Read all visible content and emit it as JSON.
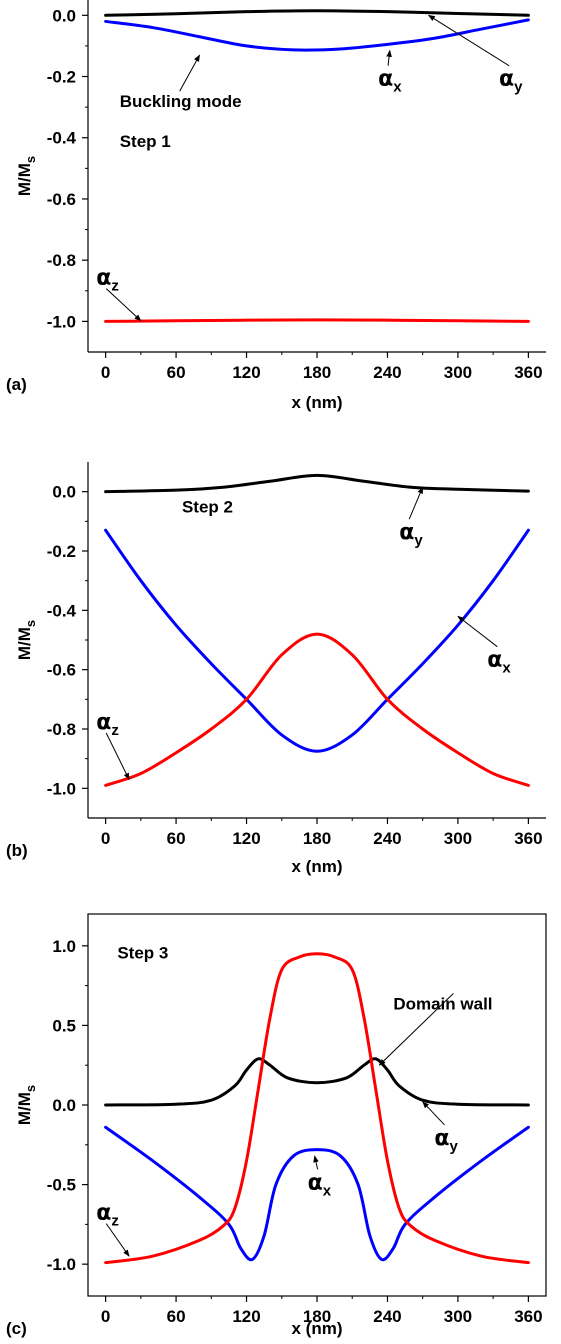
{
  "chart_data": [
    {
      "type": "line",
      "panel_label": "(a)",
      "xlabel": "x  (nm)",
      "ylabel": {
        "main": "M/M",
        "sub": "s"
      },
      "xlim": [
        -15,
        375
      ],
      "ylim": [
        -1.1,
        0.05
      ],
      "xticks": [
        0,
        60,
        120,
        180,
        240,
        300,
        360
      ],
      "yticks": [
        0.0,
        -0.2,
        -0.4,
        -0.6,
        -0.8,
        -1.0
      ],
      "ytick_labels": [
        "0.0",
        "-0.2",
        "-0.4",
        "-0.6",
        "-0.8",
        "-1.0"
      ],
      "frame": "left-bottom",
      "series": [
        {
          "name": "αy",
          "color": "#000000",
          "x": [
            0,
            60,
            120,
            180,
            240,
            300,
            360
          ],
          "y": [
            0.0,
            0.005,
            0.012,
            0.015,
            0.012,
            0.006,
            0.0
          ]
        },
        {
          "name": "αx",
          "color": "#0000ff",
          "x": [
            0,
            40,
            80,
            120,
            160,
            200,
            240,
            280,
            320,
            360
          ],
          "y": [
            -0.02,
            -0.04,
            -0.07,
            -0.1,
            -0.113,
            -0.11,
            -0.095,
            -0.075,
            -0.045,
            -0.015
          ]
        },
        {
          "name": "αz",
          "color": "#ff0000",
          "x": [
            0,
            60,
            120,
            180,
            240,
            300,
            360
          ],
          "y": [
            -1.0,
            -0.998,
            -0.996,
            -0.995,
            -0.996,
            -0.998,
            -1.0
          ]
        }
      ],
      "annotations": [
        {
          "text": "Buckling mode",
          "x": 12,
          "y": -0.3,
          "ax": 80,
          "ay": -0.13
        },
        {
          "text": "Step 1",
          "x": 12,
          "y": -0.43
        },
        {
          "greek": "α",
          "sub": "x",
          "x": 232,
          "y": -0.23,
          "ax": 242,
          "ay": -0.115
        },
        {
          "greek": "α",
          "sub": "y",
          "x": 335,
          "y": -0.23,
          "ax": 275,
          "ay": 0.0
        },
        {
          "greek": "α",
          "sub": "z",
          "x": -8,
          "y": -0.88,
          "ax": 30,
          "ay": -0.998
        }
      ]
    },
    {
      "type": "line",
      "panel_label": "(b)",
      "xlabel": "x  (nm)",
      "ylabel": {
        "main": "M/M",
        "sub": "s"
      },
      "xlim": [
        -15,
        375
      ],
      "ylim": [
        -1.1,
        0.1
      ],
      "xticks": [
        0,
        60,
        120,
        180,
        240,
        300,
        360
      ],
      "yticks": [
        0.0,
        -0.2,
        -0.4,
        -0.6,
        -0.8,
        -1.0
      ],
      "ytick_labels": [
        "0.0",
        "-0.2",
        "-0.4",
        "-0.6",
        "-0.8",
        "-1.0"
      ],
      "frame": "left-bottom",
      "series": [
        {
          "name": "αy",
          "color": "#000000",
          "x": [
            0,
            60,
            100,
            140,
            180,
            220,
            260,
            300,
            360
          ],
          "y": [
            0.0,
            0.005,
            0.015,
            0.035,
            0.055,
            0.035,
            0.015,
            0.008,
            0.002
          ]
        },
        {
          "name": "αx",
          "color": "#0000ff",
          "x": [
            0,
            30,
            60,
            90,
            120,
            150,
            180,
            210,
            240,
            270,
            300,
            330,
            360
          ],
          "y": [
            -0.13,
            -0.3,
            -0.45,
            -0.58,
            -0.7,
            -0.82,
            -0.875,
            -0.82,
            -0.7,
            -0.58,
            -0.45,
            -0.3,
            -0.13
          ]
        },
        {
          "name": "αz",
          "color": "#ff0000",
          "x": [
            0,
            30,
            60,
            90,
            120,
            150,
            180,
            210,
            240,
            270,
            300,
            330,
            360
          ],
          "y": [
            -0.99,
            -0.95,
            -0.88,
            -0.8,
            -0.7,
            -0.55,
            -0.48,
            -0.55,
            -0.7,
            -0.8,
            -0.88,
            -0.95,
            -0.99
          ]
        }
      ],
      "annotations": [
        {
          "text": "Step 2",
          "x": 65,
          "y": -0.07
        },
        {
          "greek": "α",
          "sub": "y",
          "x": 250,
          "y": -0.16,
          "ax": 270,
          "ay": 0.015
        },
        {
          "greek": "α",
          "sub": "x",
          "x": 325,
          "y": -0.59,
          "ax": 300,
          "ay": -0.42
        },
        {
          "greek": "α",
          "sub": "z",
          "x": -8,
          "y": -0.8,
          "ax": 20,
          "ay": -0.97
        }
      ]
    },
    {
      "type": "line",
      "panel_label": "(c)",
      "xlabel": "x  (nm)",
      "ylabel": {
        "main": "M/M",
        "sub": "s"
      },
      "xlim": [
        -15,
        375
      ],
      "ylim": [
        -1.2,
        1.2
      ],
      "xticks": [
        0,
        60,
        120,
        180,
        240,
        300,
        360
      ],
      "yticks": [
        1.0,
        0.5,
        0.0,
        -0.5,
        -1.0
      ],
      "ytick_labels": [
        "1.0",
        "0.5",
        "0.0",
        "-0.5",
        "-1.0"
      ],
      "frame": "box",
      "series": [
        {
          "name": "αy",
          "color": "#000000",
          "x": [
            0,
            60,
            90,
            110,
            120,
            130,
            140,
            155,
            180,
            205,
            220,
            230,
            240,
            250,
            270,
            300,
            360
          ],
          "y": [
            0.0,
            0.005,
            0.03,
            0.12,
            0.22,
            0.29,
            0.25,
            0.17,
            0.14,
            0.17,
            0.25,
            0.29,
            0.22,
            0.12,
            0.03,
            0.005,
            0.0
          ]
        },
        {
          "name": "αx",
          "color": "#0000ff",
          "x": [
            0,
            40,
            80,
            105,
            115,
            125,
            135,
            145,
            160,
            180,
            200,
            215,
            225,
            235,
            245,
            255,
            280,
            320,
            360
          ],
          "y": [
            -0.14,
            -0.35,
            -0.58,
            -0.75,
            -0.9,
            -0.97,
            -0.82,
            -0.5,
            -0.32,
            -0.28,
            -0.32,
            -0.5,
            -0.82,
            -0.97,
            -0.9,
            -0.75,
            -0.58,
            -0.35,
            -0.14
          ]
        },
        {
          "name": "αz",
          "color": "#ff0000",
          "x": [
            0,
            40,
            80,
            100,
            110,
            120,
            130,
            140,
            150,
            165,
            180,
            195,
            210,
            220,
            230,
            240,
            250,
            260,
            280,
            320,
            360
          ],
          "y": [
            -0.99,
            -0.95,
            -0.85,
            -0.76,
            -0.65,
            -0.35,
            0.1,
            0.55,
            0.85,
            0.93,
            0.95,
            0.93,
            0.85,
            0.55,
            0.1,
            -0.35,
            -0.65,
            -0.76,
            -0.85,
            -0.95,
            -0.99
          ]
        }
      ],
      "annotations": [
        {
          "text": "Step 3",
          "x": 10,
          "y": 0.92
        },
        {
          "text": "Domain wall",
          "x": 245,
          "y": 0.6,
          "ax": 233,
          "ay": 0.25
        },
        {
          "greek": "α",
          "sub": "x",
          "x": 172,
          "y": -0.53,
          "ax": 178,
          "ay": -0.32
        },
        {
          "greek": "α",
          "sub": "y",
          "x": 280,
          "y": -0.25,
          "ax": 270,
          "ay": 0.02
        },
        {
          "greek": "α",
          "sub": "z",
          "x": -8,
          "y": -0.72,
          "ax": 20,
          "ay": -0.95
        }
      ]
    }
  ]
}
